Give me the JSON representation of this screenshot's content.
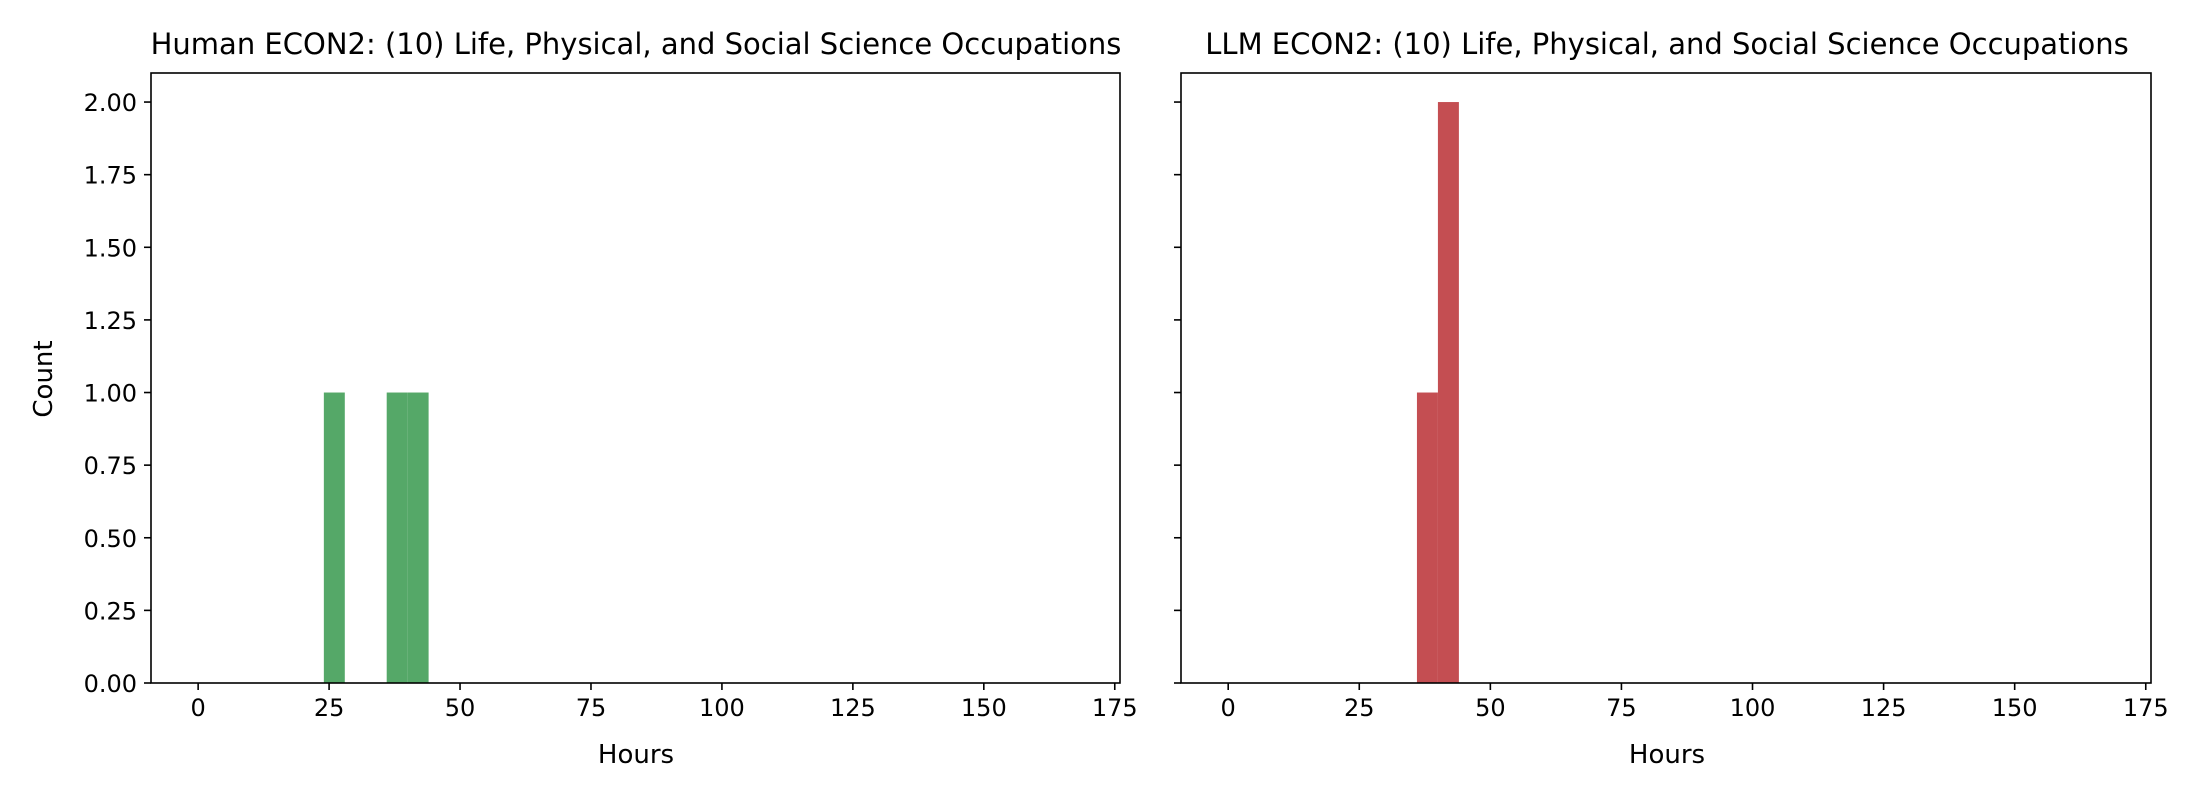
{
  "chart_data": [
    {
      "type": "bar",
      "title": "Human ECON2: (10) Life, Physical, and Social Science Occupations",
      "xlabel": "Hours",
      "ylabel": "Count",
      "xlim": [
        -9,
        176
      ],
      "ylim": [
        0,
        2.1
      ],
      "xticks": [
        0,
        25,
        50,
        75,
        100,
        125,
        150,
        175
      ],
      "yticks": [
        0.0,
        0.25,
        0.5,
        0.75,
        1.0,
        1.25,
        1.5,
        1.75,
        2.0
      ],
      "xtick_labels": [
        "0",
        "25",
        "50",
        "75",
        "100",
        "125",
        "150",
        "175"
      ],
      "ytick_labels": [
        "0.00",
        "0.25",
        "0.50",
        "0.75",
        "1.00",
        "1.25",
        "1.50",
        "1.75",
        "2.00"
      ],
      "show_yticklabels": true,
      "grid": false,
      "color": "#55a868",
      "bins": [
        {
          "x0": 24,
          "x1": 28,
          "count": 1
        },
        {
          "x0": 36,
          "x1": 40,
          "count": 1
        },
        {
          "x0": 40,
          "x1": 44,
          "count": 1
        }
      ]
    },
    {
      "type": "bar",
      "title": "LLM ECON2: (10) Life, Physical, and Social Science Occupations",
      "xlabel": "Hours",
      "ylabel": "",
      "xlim": [
        -9,
        176
      ],
      "ylim": [
        0,
        2.1
      ],
      "xticks": [
        0,
        25,
        50,
        75,
        100,
        125,
        150,
        175
      ],
      "yticks": [
        0.0,
        0.25,
        0.5,
        0.75,
        1.0,
        1.25,
        1.5,
        1.75,
        2.0
      ],
      "xtick_labels": [
        "0",
        "25",
        "50",
        "75",
        "100",
        "125",
        "150",
        "175"
      ],
      "ytick_labels": [
        "0.00",
        "0.25",
        "0.50",
        "0.75",
        "1.00",
        "1.25",
        "1.50",
        "1.75",
        "2.00"
      ],
      "show_yticklabels": false,
      "grid": false,
      "color": "#c44e52",
      "bins": [
        {
          "x0": 36,
          "x1": 40,
          "count": 1
        },
        {
          "x0": 40,
          "x1": 44,
          "count": 2
        }
      ]
    }
  ]
}
